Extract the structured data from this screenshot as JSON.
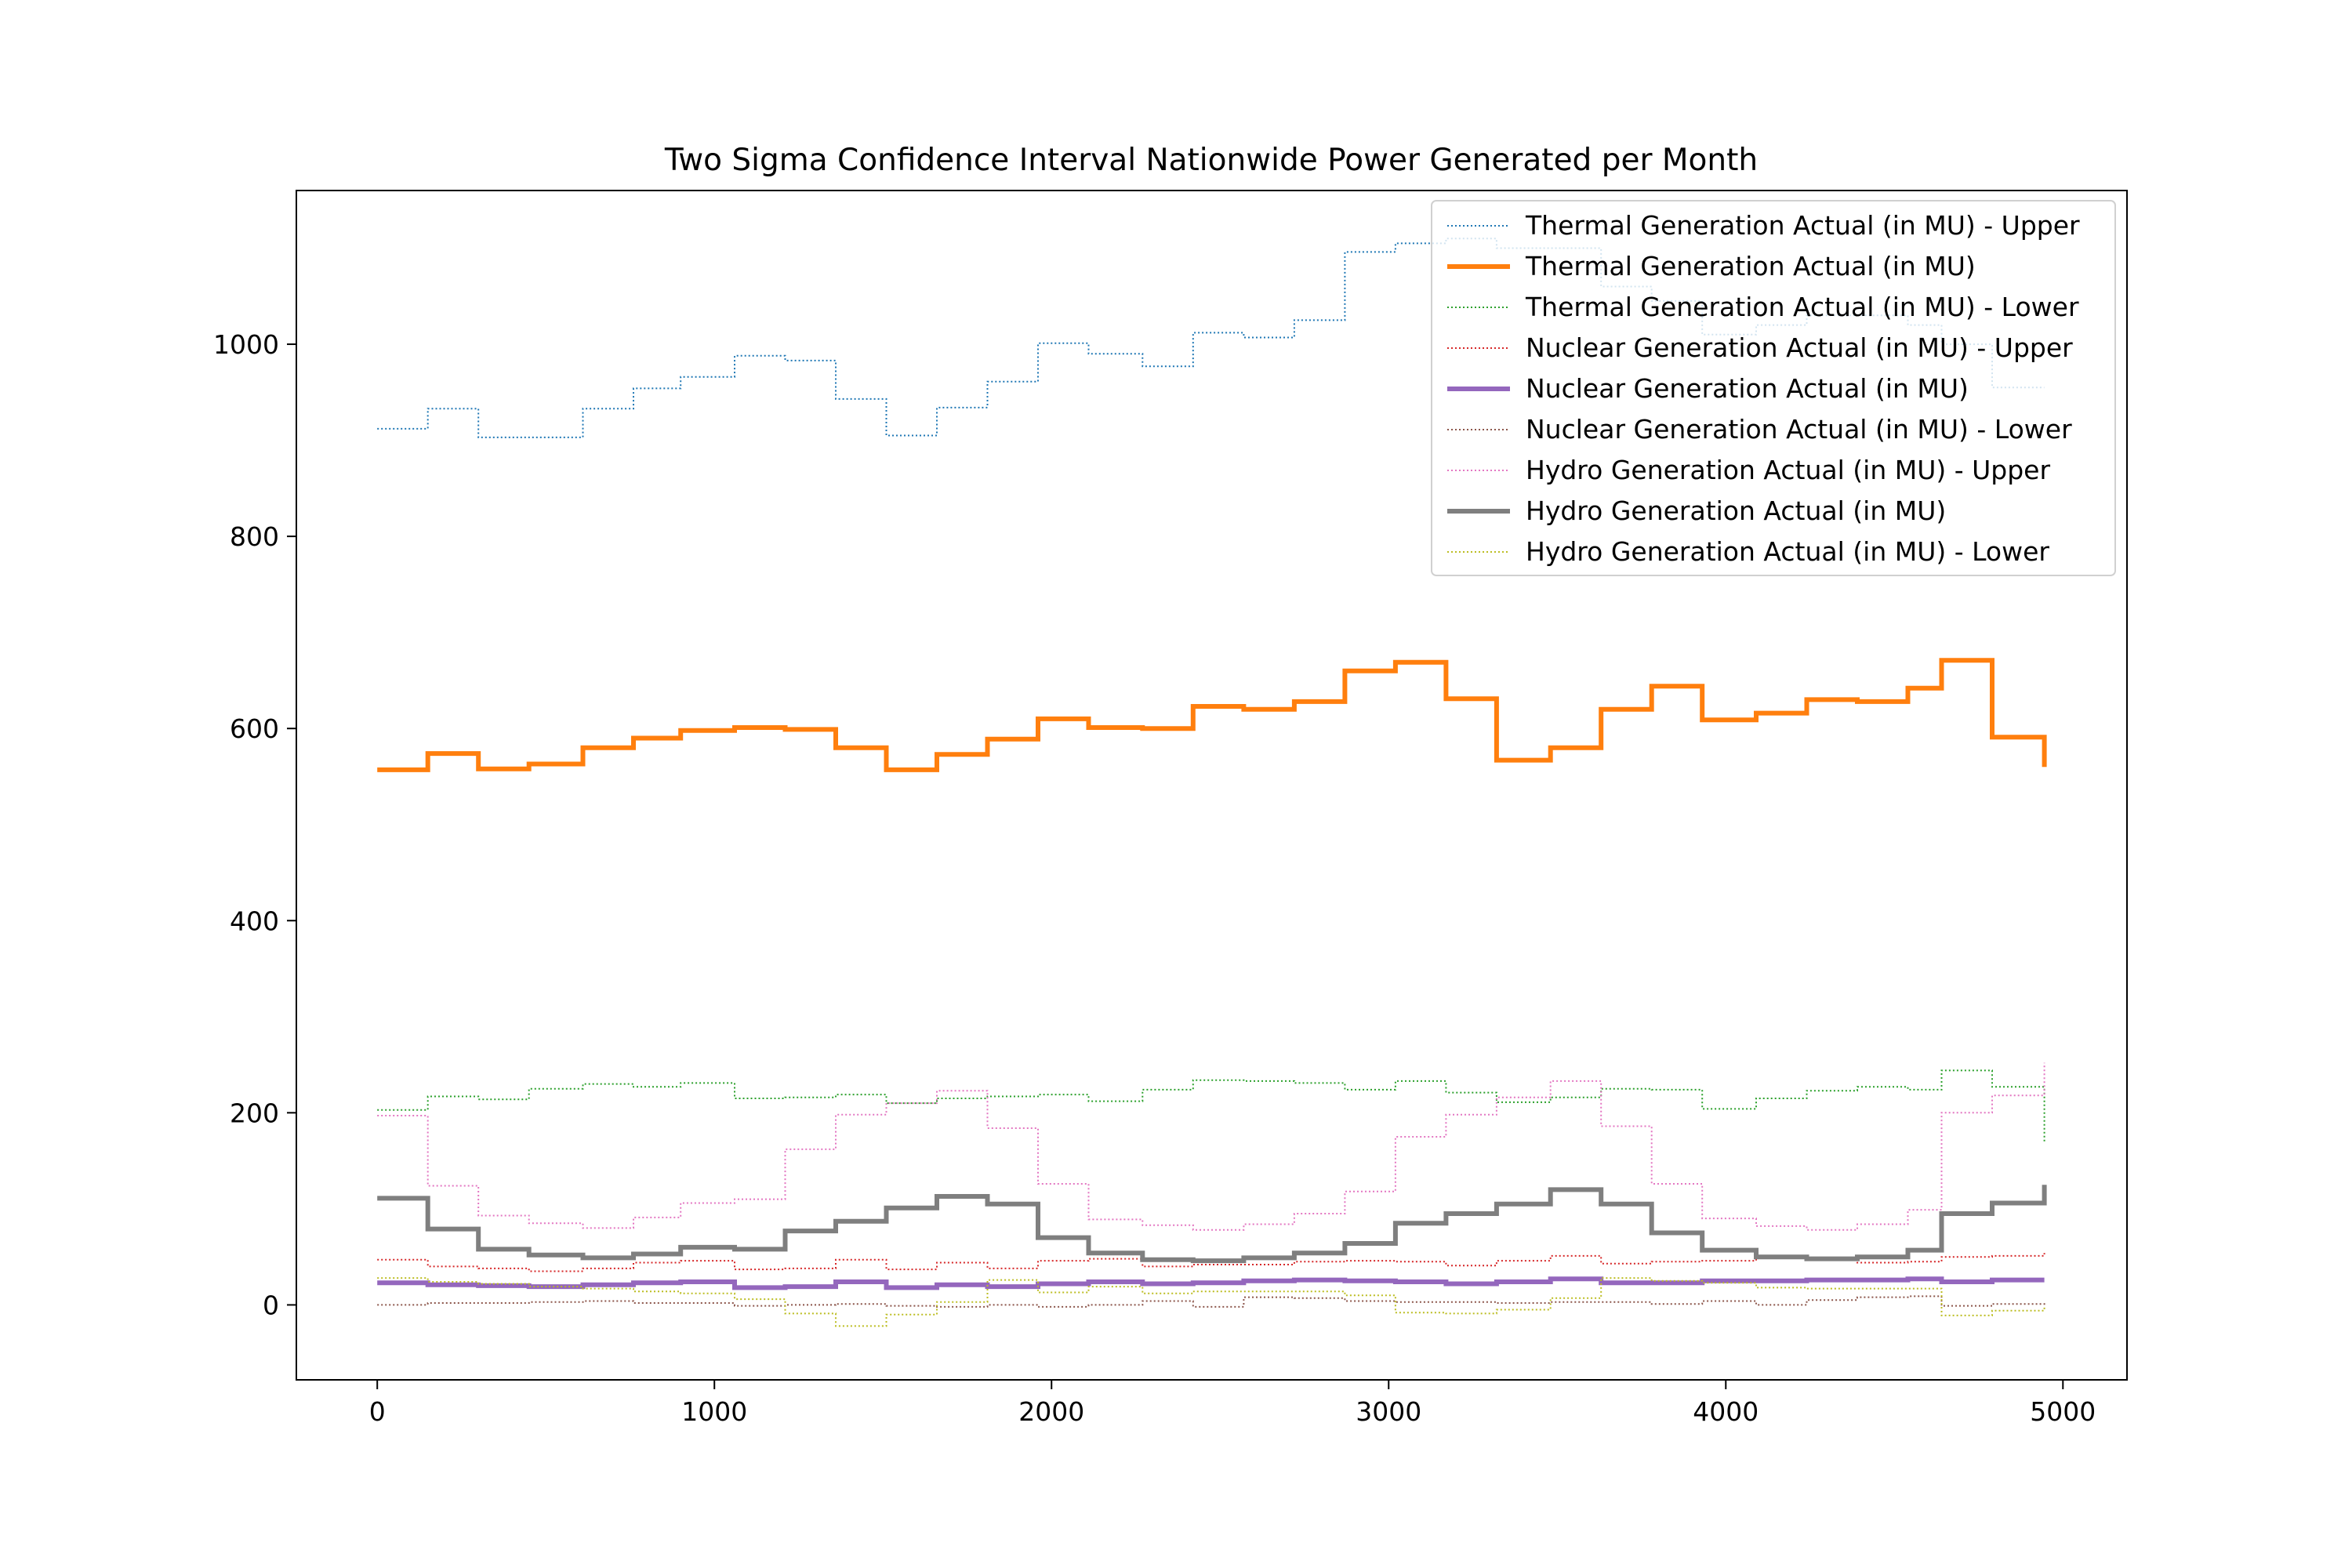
{
  "chart_data": {
    "type": "line",
    "step": "post",
    "title": "Two Sigma Confidence Interval Nationwide Power Generated per Month",
    "xlabel": "",
    "ylabel": "",
    "xlim": [
      -240,
      5190
    ],
    "ylim": [
      -78,
      1160
    ],
    "x_ticks": [
      0,
      1000,
      2000,
      3000,
      4000,
      5000
    ],
    "x_tick_labels": [
      "0",
      "1000",
      "2000",
      "3000",
      "4000",
      "5000"
    ],
    "y_ticks": [
      0,
      200,
      400,
      600,
      800,
      1000
    ],
    "y_tick_labels": [
      "0",
      "200",
      "400",
      "600",
      "800",
      "1000"
    ],
    "grid": false,
    "legend_position": "top-right",
    "x": [
      0,
      150,
      300,
      450,
      610,
      760,
      900,
      1060,
      1210,
      1360,
      1510,
      1660,
      1810,
      1960,
      2110,
      2270,
      2420,
      2570,
      2720,
      2870,
      3020,
      3170,
      3320,
      3480,
      3630,
      3780,
      3930,
      4090,
      4240,
      4390,
      4540,
      4640,
      4790,
      4945
    ],
    "series": [
      {
        "name": "Thermal Generation Actual (in MU) - Upper",
        "color": "#1f77b4",
        "style": "dotted",
        "values": [
          912,
          933,
          903,
          903,
          933,
          954,
          966,
          988,
          983,
          943,
          905,
          934,
          961,
          1001,
          990,
          977,
          1012,
          1007,
          1025,
          1096,
          1105,
          1110,
          1100,
          1100,
          1060,
          1045,
          1010,
          1020,
          1030,
          1030,
          1020,
          1000,
          955,
          955
        ]
      },
      {
        "name": "Thermal Generation Actual (in MU)",
        "color": "#ff7f0e",
        "style": "solid",
        "values": [
          557,
          574,
          558,
          563,
          580,
          590,
          598,
          601,
          599,
          580,
          557,
          573,
          589,
          610,
          601,
          600,
          623,
          620,
          628,
          660,
          669,
          631,
          567,
          580,
          620,
          644,
          609,
          616,
          630,
          628,
          642,
          671,
          591,
          560
        ]
      },
      {
        "name": "Thermal Generation Actual (in MU) - Lower",
        "color": "#2ca02c",
        "style": "dotted",
        "values": [
          203,
          217,
          214,
          225,
          230,
          227,
          231,
          215,
          216,
          219,
          210,
          215,
          217,
          219,
          212,
          224,
          234,
          233,
          231,
          224,
          233,
          221,
          211,
          216,
          225,
          224,
          204,
          215,
          223,
          227,
          224,
          244,
          227,
          170
        ]
      },
      {
        "name": "Nuclear Generation Actual (in MU) - Upper",
        "color": "#d62728",
        "style": "dotted",
        "values": [
          47,
          40,
          38,
          35,
          38,
          44,
          46,
          37,
          38,
          47,
          37,
          44,
          38,
          46,
          48,
          40,
          42,
          42,
          45,
          46,
          45,
          41,
          46,
          51,
          43,
          45,
          46,
          50,
          47,
          44,
          45,
          50,
          51,
          54
        ]
      },
      {
        "name": "Nuclear Generation Actual (in MU)",
        "color": "#9467bd",
        "style": "solid",
        "values": [
          23,
          21,
          20,
          19,
          21,
          23,
          24,
          18,
          19,
          24,
          18,
          21,
          19,
          22,
          24,
          22,
          23,
          25,
          26,
          25,
          24,
          22,
          24,
          27,
          23,
          23,
          25,
          25,
          26,
          26,
          27,
          24,
          26,
          26
        ]
      },
      {
        "name": "Nuclear Generation Actual (in MU) - Lower",
        "color": "#8c564b",
        "style": "dotted",
        "values": [
          0,
          2,
          2,
          3,
          4,
          2,
          2,
          -1,
          0,
          1,
          -1,
          -2,
          0,
          -2,
          0,
          4,
          -2,
          8,
          7,
          4,
          3,
          3,
          2,
          3,
          3,
          1,
          4,
          0,
          5,
          8,
          9,
          -1,
          1,
          -2
        ]
      },
      {
        "name": "Hydro Generation Actual (in MU) - Upper",
        "color": "#e377c2",
        "style": "dotted",
        "values": [
          197,
          124,
          93,
          85,
          80,
          91,
          106,
          110,
          162,
          198,
          210,
          223,
          184,
          126,
          89,
          83,
          78,
          84,
          95,
          118,
          175,
          198,
          216,
          233,
          186,
          126,
          90,
          82,
          78,
          84,
          99,
          200,
          218,
          252
        ]
      },
      {
        "name": "Hydro Generation Actual (in MU)",
        "color": "#7f7f7f",
        "style": "solid",
        "values": [
          111,
          79,
          58,
          52,
          49,
          53,
          60,
          58,
          77,
          87,
          101,
          113,
          105,
          70,
          54,
          47,
          46,
          49,
          54,
          64,
          85,
          95,
          105,
          120,
          105,
          75,
          57,
          50,
          48,
          50,
          57,
          95,
          106,
          125
        ]
      },
      {
        "name": "Hydro Generation Actual (in MU) - Lower",
        "color": "#bcbd22",
        "style": "dotted",
        "values": [
          28,
          24,
          22,
          19,
          17,
          14,
          12,
          6,
          -9,
          -22,
          -10,
          3,
          26,
          13,
          19,
          12,
          14,
          14,
          14,
          10,
          -8,
          -9,
          -5,
          7,
          28,
          25,
          23,
          18,
          17,
          17,
          17,
          -11,
          -6,
          -2
        ]
      }
    ]
  }
}
